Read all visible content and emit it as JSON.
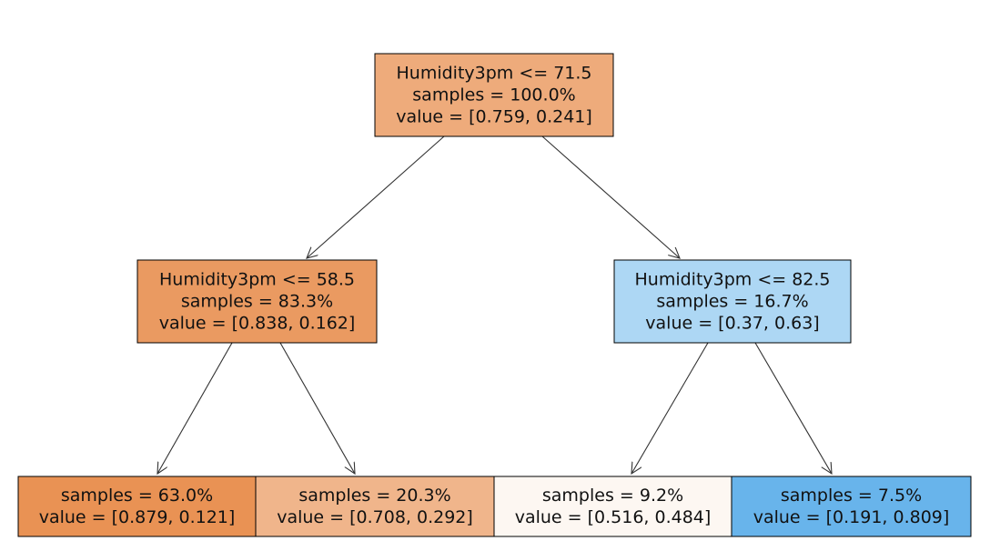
{
  "tree": {
    "nodes": [
      {
        "id": "root",
        "lines": [
          "Humidity3pm <= 71.5",
          "samples = 100.0%",
          "value = [0.759, 0.241]"
        ],
        "fill": "#eeab7b"
      },
      {
        "id": "left",
        "lines": [
          "Humidity3pm <= 58.5",
          "samples = 83.3%",
          "value = [0.838, 0.162]"
        ],
        "fill": "#ea9a61"
      },
      {
        "id": "right",
        "lines": [
          "Humidity3pm <= 82.5",
          "samples = 16.7%",
          "value = [0.37, 0.63]"
        ],
        "fill": "#add7f4"
      },
      {
        "id": "ll",
        "lines": [
          "samples = 63.0%",
          "value = [0.879, 0.121]"
        ],
        "fill": "#e99254"
      },
      {
        "id": "lr",
        "lines": [
          "samples = 20.3%",
          "value = [0.708, 0.292]"
        ],
        "fill": "#f0b58b"
      },
      {
        "id": "rl",
        "lines": [
          "samples = 9.2%",
          "value = [0.516, 0.484]"
        ],
        "fill": "#fdf7f2"
      },
      {
        "id": "rr",
        "lines": [
          "samples = 7.5%",
          "value = [0.191, 0.809]"
        ],
        "fill": "#68b4eb"
      }
    ],
    "edges": [
      {
        "from": "root",
        "to": "left"
      },
      {
        "from": "root",
        "to": "right"
      },
      {
        "from": "left",
        "to": "ll"
      },
      {
        "from": "left",
        "to": "lr"
      },
      {
        "from": "right",
        "to": "rl"
      },
      {
        "from": "right",
        "to": "rr"
      }
    ]
  }
}
